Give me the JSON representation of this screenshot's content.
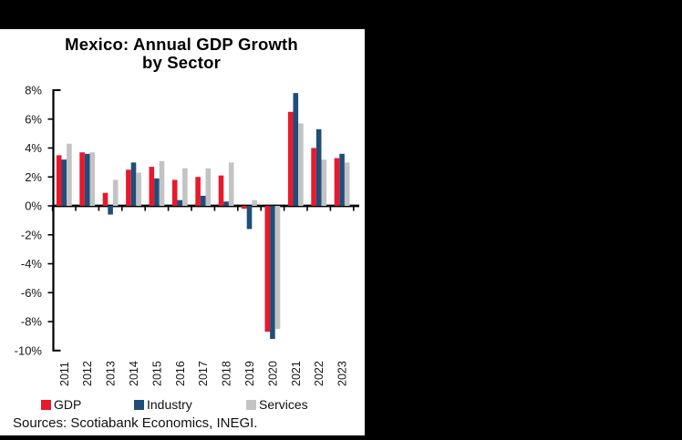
{
  "frame": {
    "background_color": "#000000",
    "panel_color": "#FFFFFF"
  },
  "title": {
    "line1": "Mexico: Annual GDP Growth",
    "line2": "by Sector"
  },
  "source_note": "Sources: Scotiabank Economics, INEGI.",
  "chart_data": {
    "type": "bar",
    "title": "Mexico: Annual GDP Growth by Sector",
    "categories": [
      "2011",
      "2012",
      "2013",
      "2014",
      "2015",
      "2016",
      "2017",
      "2018",
      "2019",
      "2020",
      "2021",
      "2022",
      "2023"
    ],
    "series": [
      {
        "name": "GDP",
        "color": "#E8192C",
        "values": [
          3.5,
          3.7,
          0.9,
          2.5,
          2.7,
          1.8,
          2.0,
          2.1,
          -0.2,
          -8.7,
          6.5,
          4.0,
          3.3
        ]
      },
      {
        "name": "Industry",
        "color": "#1F4E79",
        "values": [
          3.2,
          3.6,
          -0.6,
          3.0,
          1.9,
          0.4,
          0.7,
          0.3,
          -1.6,
          -9.2,
          7.8,
          5.3,
          3.6
        ]
      },
      {
        "name": "Services",
        "color": "#C3C3C3",
        "values": [
          4.3,
          3.7,
          1.8,
          2.3,
          3.1,
          2.6,
          2.6,
          3.0,
          0.4,
          -8.5,
          5.7,
          3.2,
          3.0
        ]
      }
    ],
    "ylabel": "",
    "xlabel": "",
    "ylim": [
      -10,
      8
    ],
    "ytick_step": 2,
    "ytick_labels": [
      "8%",
      "6%",
      "4%",
      "2%",
      "0%",
      "-2%",
      "-4%",
      "-6%",
      "-8%",
      "-10%"
    ],
    "grid": false,
    "legend_position": "bottom",
    "axis_color": "#000000"
  }
}
